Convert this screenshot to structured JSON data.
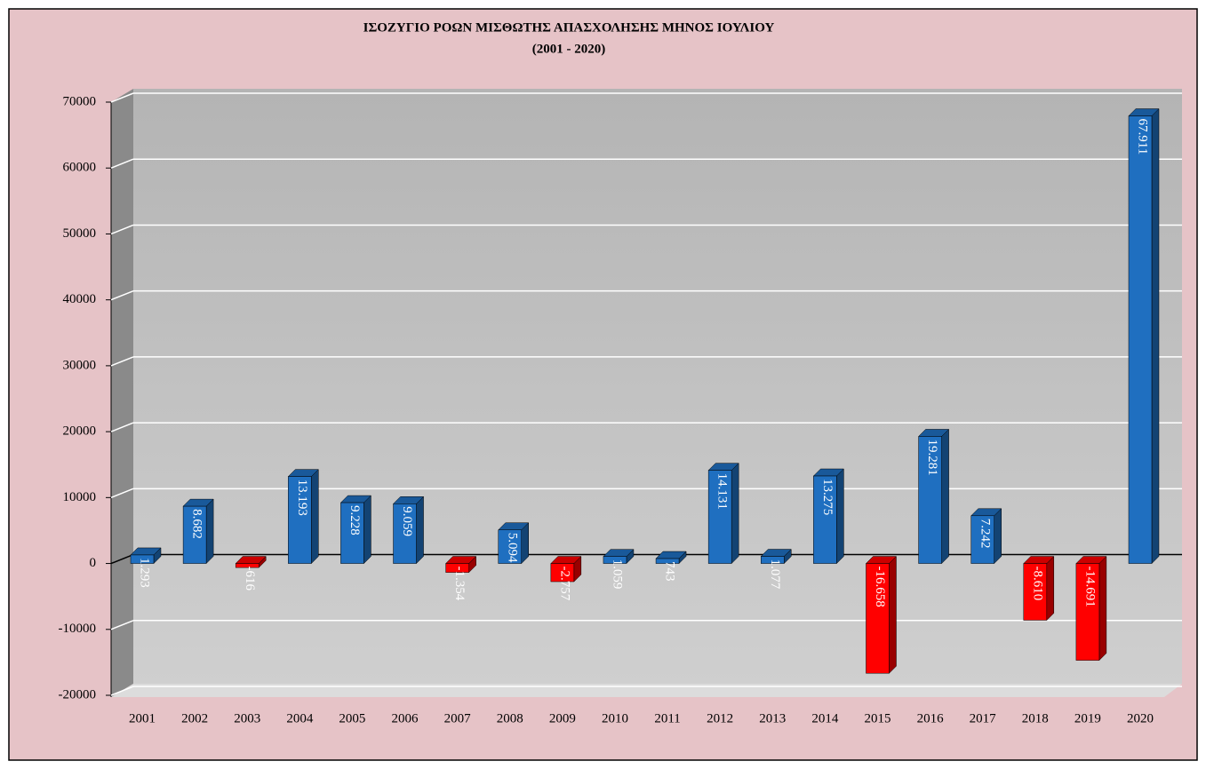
{
  "chart_data": {
    "type": "bar",
    "title": "ΙΣΟΖΥΓΙΟ ΡΟΩΝ ΜΙΣΘΩΤΗΣ ΑΠΑΣΧΟΛΗΣΗΣ ΜΗΝΟΣ  ΙΟΥΛΙΟΥ",
    "subtitle": "(2001 - 2020)",
    "categories": [
      "2001",
      "2002",
      "2003",
      "2004",
      "2005",
      "2006",
      "2007",
      "2008",
      "2009",
      "2010",
      "2011",
      "2012",
      "2013",
      "2014",
      "2015",
      "2016",
      "2017",
      "2018",
      "2019",
      "2020"
    ],
    "values": [
      1293,
      8682,
      -616,
      13193,
      9228,
      9059,
      -1354,
      5094,
      -2757,
      1059,
      743,
      14131,
      1077,
      13275,
      -16658,
      19281,
      7242,
      -8610,
      -14691,
      67911
    ],
    "value_labels": [
      "1.293",
      "8.682",
      "-616",
      "13.193",
      "9.228",
      "9.059",
      "-1.354",
      "5.094",
      "-2.757",
      "1.059",
      "743",
      "14.131",
      "1.077",
      "13.275",
      "-16.658",
      "19.281",
      "7.242",
      "-8.610",
      "-14.691",
      "67.911"
    ],
    "colors": {
      "positive": "#1f6fc0",
      "negative": "#ff0000"
    },
    "ylim": [
      -20000,
      70000
    ],
    "yticks": [
      -20000,
      -10000,
      0,
      10000,
      20000,
      30000,
      40000,
      50000,
      60000,
      70000
    ],
    "grid": true
  }
}
